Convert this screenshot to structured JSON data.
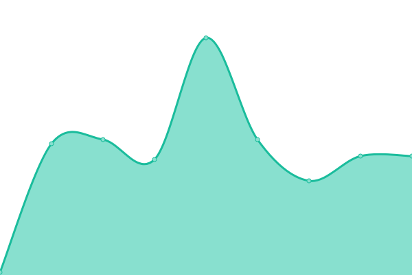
{
  "chart_data": {
    "type": "area",
    "title": "",
    "xlabel": "",
    "ylabel": "",
    "x": [
      0,
      1,
      2,
      3,
      4,
      5,
      6,
      7,
      8
    ],
    "values": [
      4,
      191,
      197,
      168,
      345,
      197,
      137,
      173,
      173
    ],
    "ylim": [
      0,
      400
    ],
    "grid": false,
    "legend": "none",
    "smooth": true,
    "colors": {
      "line": "#1abc9c",
      "fill": "#88e0cf",
      "point_fill": "#88e0cf",
      "point_stroke": "#1abc9c"
    }
  }
}
